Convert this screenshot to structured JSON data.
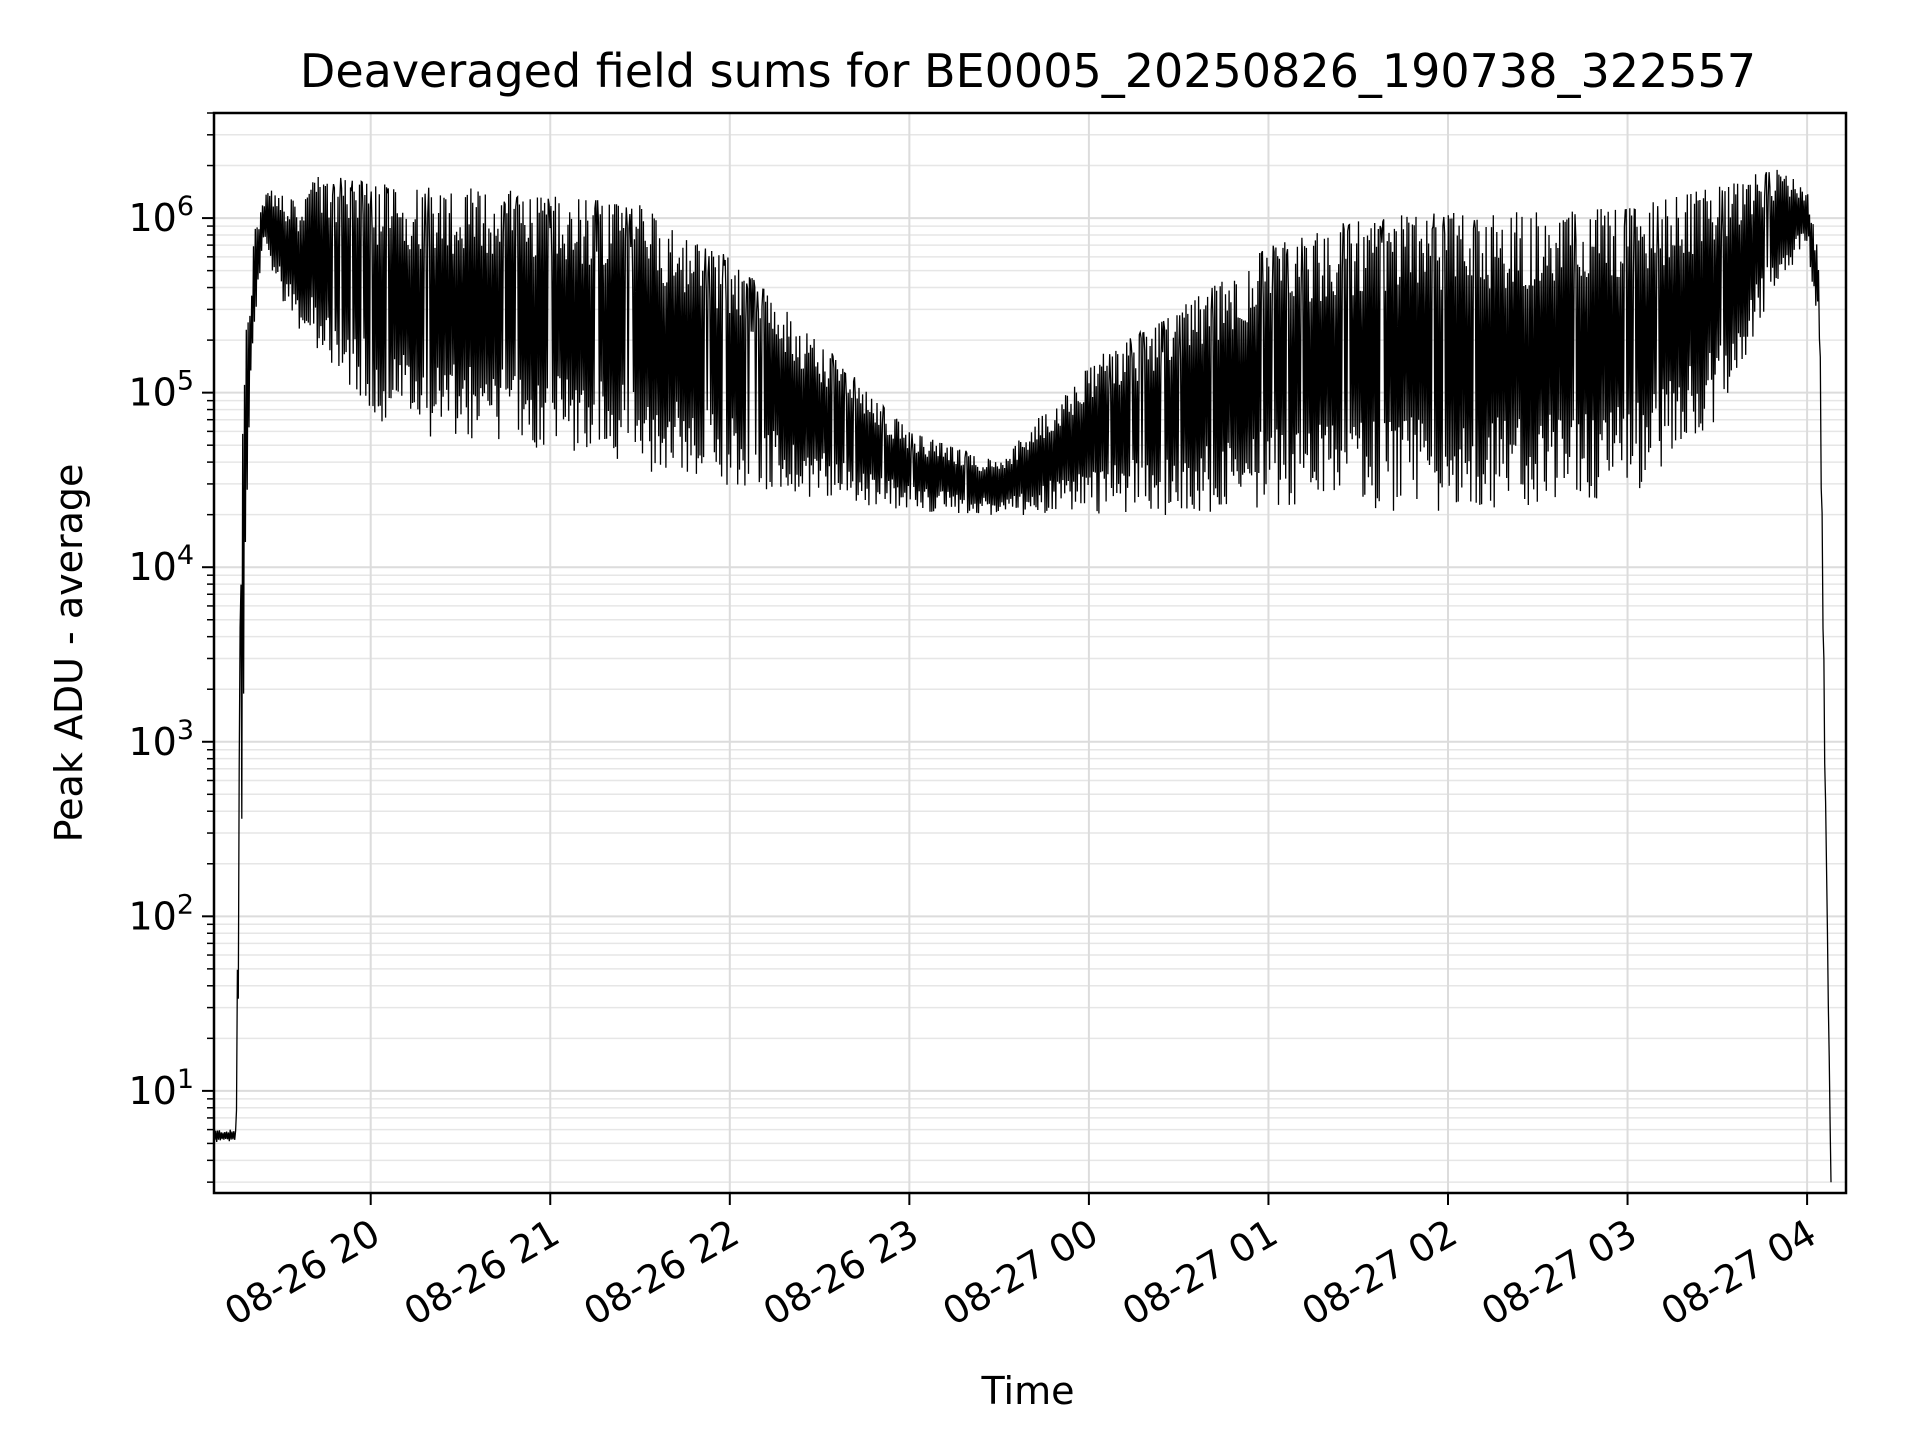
{
  "chart_data": {
    "type": "line",
    "title": "Deaveraged field sums for BE0005_20250826_190738_322557",
    "xlabel": "Time",
    "ylabel": "Peak ADU - average",
    "y_scale": "log",
    "ylim": [
      2.6,
      4000000
    ],
    "xlim": [
      "2025-08-26 19:07:38",
      "2025-08-27 04:13:00"
    ],
    "x_ticks": [
      "08-26 20",
      "08-26 21",
      "08-26 22",
      "08-26 23",
      "08-27 00",
      "08-27 01",
      "08-27 02",
      "08-27 03",
      "08-27 04"
    ],
    "y_ticks": [
      {
        "base": "10",
        "exp": "1",
        "value": 10
      },
      {
        "base": "10",
        "exp": "2",
        "value": 100
      },
      {
        "base": "10",
        "exp": "3",
        "value": 1000
      },
      {
        "base": "10",
        "exp": "4",
        "value": 10000
      },
      {
        "base": "10",
        "exp": "5",
        "value": 100000
      },
      {
        "base": "10",
        "exp": "6",
        "value": 1000000
      }
    ],
    "grid": true,
    "line_color": "#000000",
    "series": [
      {
        "x": [
          "2025-08-26 19:07:38",
          "2025-08-26 19:15:00",
          "2025-08-26 19:17:00",
          "2025-08-26 19:19:00",
          "2025-08-26 19:21:00",
          "2025-08-26 19:24:00",
          "2025-08-26 19:28:00",
          "2025-08-26 19:33:00",
          "2025-08-26 19:37:00",
          "2025-08-26 19:42:00",
          "2025-08-26 19:50:00",
          "2025-08-26 20:00:00",
          "2025-08-26 20:30:00",
          "2025-08-26 21:00:00",
          "2025-08-26 21:30:00",
          "2025-08-26 22:00:00",
          "2025-08-26 22:30:00",
          "2025-08-26 23:00:00",
          "2025-08-26 23:30:00",
          "2025-08-27 00:00:00",
          "2025-08-27 00:30:00",
          "2025-08-27 01:00:00",
          "2025-08-27 01:30:00",
          "2025-08-27 02:00:00",
          "2025-08-27 02:30:00",
          "2025-08-27 03:00:00",
          "2025-08-27 03:30:00",
          "2025-08-27 03:50:00",
          "2025-08-27 04:00:00",
          "2025-08-27 04:04:00",
          "2025-08-27 04:06:00",
          "2025-08-27 04:08:00"
        ],
        "low": [
          5,
          5,
          300,
          30000,
          200000,
          700000,
          400000,
          250000,
          200000,
          150000,
          110000,
          60000,
          40000,
          40000,
          30000,
          25000,
          22000,
          20000,
          19000,
          18000,
          17000,
          17000,
          17000,
          17000,
          18000,
          20000,
          60000,
          350000,
          700000,
          200000,
          500,
          3
        ],
        "high": [
          6,
          6,
          150000,
          300000,
          800000,
          1400000,
          1500000,
          1300000,
          1200000,
          1800000,
          1700000,
          1600000,
          1500000,
          1400000,
          1200000,
          600000,
          200000,
          60000,
          40000,
          150000,
          300000,
          700000,
          1000000,
          1100000,
          1100000,
          1200000,
          1500000,
          2000000,
          1500000,
          600000,
          800,
          3
        ]
      }
    ]
  }
}
